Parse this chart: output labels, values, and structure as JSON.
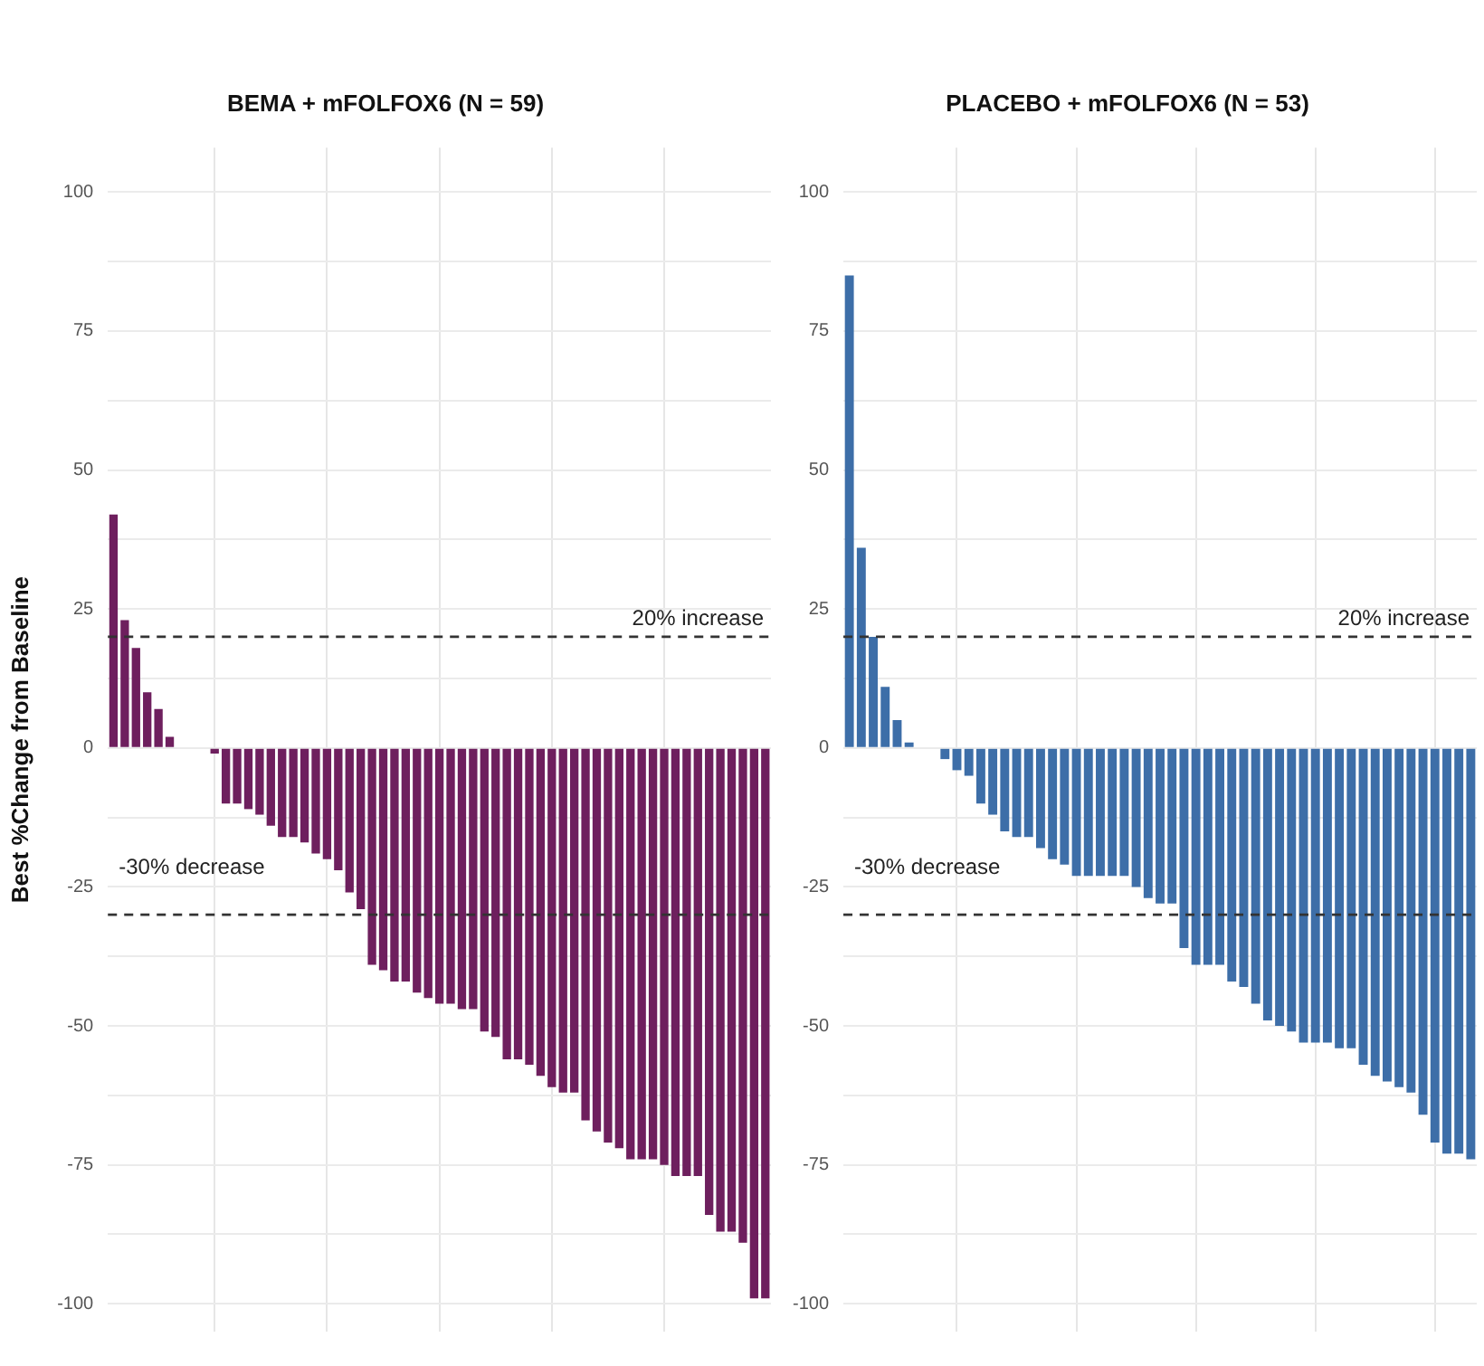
{
  "chart_data": [
    {
      "type": "bar",
      "title": "BEMA + mFOLFOX6 (N = 59)",
      "ylabel": "Best %Change from Baseline",
      "categories": [
        null,
        null,
        null,
        null,
        null,
        null,
        null,
        null,
        null,
        null,
        null,
        null,
        null,
        null,
        null,
        null,
        null,
        null,
        null,
        null,
        null,
        null,
        null,
        null,
        null,
        null,
        null,
        null,
        null,
        null,
        null,
        null,
        null,
        null,
        null,
        null,
        null,
        null,
        null,
        null,
        null,
        null,
        null,
        null,
        null,
        null,
        null,
        null,
        null,
        null,
        null,
        null,
        null,
        null,
        null,
        null,
        null,
        null,
        null
      ],
      "values": [
        42,
        23,
        18,
        10,
        7,
        2,
        0,
        0,
        0,
        -1,
        -10,
        -10,
        -11,
        -12,
        -14,
        -16,
        -16,
        -17,
        -19,
        -20,
        -22,
        -26,
        -29,
        -39,
        -40,
        -42,
        -42,
        -44,
        -45,
        -46,
        -46,
        -47,
        -47,
        -51,
        -52,
        -56,
        -56,
        -57,
        -59,
        -61,
        -62,
        -62,
        -67,
        -69,
        -71,
        -72,
        -74,
        -74,
        -74,
        -75,
        -77,
        -77,
        -77,
        -84,
        -87,
        -87,
        -89,
        -99,
        -99
      ],
      "color": "#6e1f5e",
      "ylim": [
        -105,
        108
      ],
      "yticks": [
        -100,
        {
          "value": -87.5,
          "label": null
        },
        -75,
        {
          "value": -62.5,
          "label": null
        },
        -50,
        {
          "value": -37.5,
          "label": null
        },
        -25,
        {
          "value": -12.5,
          "label": null
        },
        0,
        {
          "value": 12.5,
          "label": null
        },
        25,
        {
          "value": 37.5,
          "label": null
        },
        50,
        {
          "value": 62.5,
          "label": null
        },
        75,
        {
          "value": 87.5,
          "label": null
        },
        100
      ],
      "ref_lines": [
        {
          "axis": "y",
          "value": 20,
          "label": "20% increase",
          "line_style": "dashed"
        },
        {
          "axis": "y",
          "value": -30,
          "label": "-30% decrease",
          "line_style": "dashed"
        }
      ],
      "grid": true,
      "legend": false,
      "tick_labels": "y"
    },
    {
      "type": "bar",
      "title": "PLACEBO + mFOLFOX6 (N = 53)",
      "categories": [
        null,
        null,
        null,
        null,
        null,
        null,
        null,
        null,
        null,
        null,
        null,
        null,
        null,
        null,
        null,
        null,
        null,
        null,
        null,
        null,
        null,
        null,
        null,
        null,
        null,
        null,
        null,
        null,
        null,
        null,
        null,
        null,
        null,
        null,
        null,
        null,
        null,
        null,
        null,
        null,
        null,
        null,
        null,
        null,
        null,
        null,
        null,
        null,
        null,
        null,
        null,
        null,
        null
      ],
      "values": [
        85,
        36,
        20,
        11,
        5,
        1,
        0,
        0,
        -2,
        -4,
        -5,
        -10,
        -12,
        -15,
        -16,
        -16,
        -18,
        -20,
        -21,
        -23,
        -23,
        -23,
        -23,
        -23,
        -25,
        -27,
        -28,
        -28,
        -36,
        -39,
        -39,
        -39,
        -42,
        -43,
        -46,
        -49,
        -50,
        -51,
        -53,
        -53,
        -53,
        -54,
        -54,
        -57,
        -59,
        -60,
        -61,
        -62,
        -66,
        -71,
        -73,
        -73,
        -74
      ],
      "color": "#3d6ea8",
      "ylim": [
        -105,
        108
      ],
      "yticks": [
        -100,
        {
          "value": -87.5,
          "label": null
        },
        -75,
        {
          "value": -62.5,
          "label": null
        },
        -50,
        {
          "value": -37.5,
          "label": null
        },
        -25,
        {
          "value": -12.5,
          "label": null
        },
        0,
        {
          "value": 12.5,
          "label": null
        },
        25,
        {
          "value": 37.5,
          "label": null
        },
        50,
        {
          "value": 62.5,
          "label": null
        },
        75,
        {
          "value": 87.5,
          "label": null
        },
        100
      ],
      "ref_lines": [
        {
          "axis": "y",
          "value": 20,
          "label": "20% increase",
          "line_style": "dashed"
        },
        {
          "axis": "y",
          "value": -30,
          "label": "-30% decrease",
          "line_style": "dashed"
        }
      ],
      "grid": true,
      "legend": false,
      "tick_labels": "y"
    }
  ]
}
